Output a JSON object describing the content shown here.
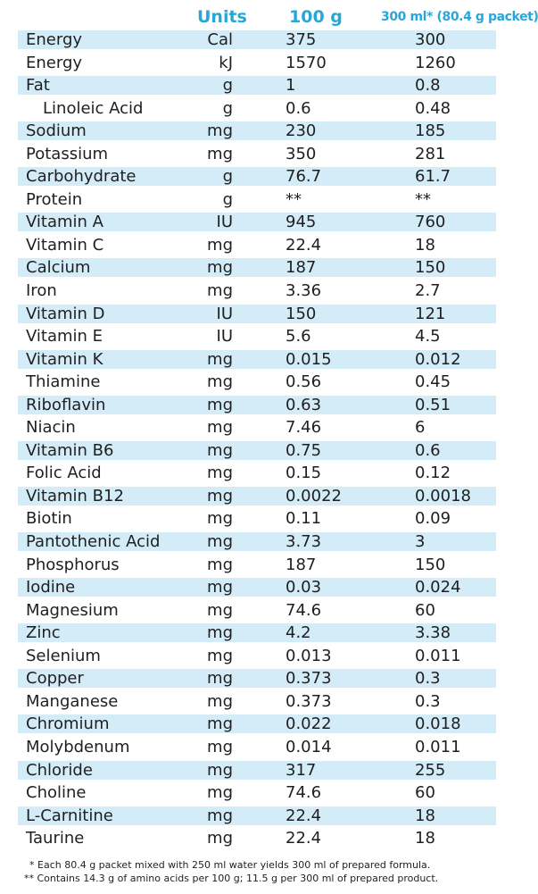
{
  "header": {
    "units": "Units",
    "per_100g": "100 g",
    "per_300ml": "300 ml* (80.4 g packet)"
  },
  "rows": [
    {
      "name": "Energy",
      "unit": "Cal",
      "v100": "375",
      "v300": "300",
      "shaded": true
    },
    {
      "name": "Energy",
      "unit": "kJ",
      "v100": "1570",
      "v300": "1260",
      "shaded": false
    },
    {
      "name": "Fat",
      "unit": "g",
      "v100": "1",
      "v300": "0.8",
      "shaded": true
    },
    {
      "name": "Linoleic Acid",
      "unit": "g",
      "v100": "0.6",
      "v300": "0.48",
      "shaded": false,
      "indent": true
    },
    {
      "name": "Sodium",
      "unit": "mg",
      "v100": "230",
      "v300": "185",
      "shaded": true
    },
    {
      "name": "Potassium",
      "unit": "mg",
      "v100": "350",
      "v300": "281",
      "shaded": false
    },
    {
      "name": "Carbohydrate",
      "unit": "g",
      "v100": "76.7",
      "v300": "61.7",
      "shaded": true
    },
    {
      "name": "Protein",
      "unit": "g",
      "v100": "**",
      "v300": "**",
      "shaded": false
    },
    {
      "name": "Vitamin A",
      "unit": "IU",
      "v100": "945",
      "v300": "760",
      "shaded": true
    },
    {
      "name": "Vitamin C",
      "unit": "mg",
      "v100": "22.4",
      "v300": "18",
      "shaded": false
    },
    {
      "name": "Calcium",
      "unit": "mg",
      "v100": "187",
      "v300": "150",
      "shaded": true
    },
    {
      "name": "Iron",
      "unit": "mg",
      "v100": "3.36",
      "v300": "2.7",
      "shaded": false
    },
    {
      "name": "Vitamin D",
      "unit": "IU",
      "v100": "150",
      "v300": "121",
      "shaded": true
    },
    {
      "name": "Vitamin E",
      "unit": "IU",
      "v100": "5.6",
      "v300": "4.5",
      "shaded": false
    },
    {
      "name": "Vitamin K",
      "unit": "mg",
      "v100": "0.015",
      "v300": "0.012",
      "shaded": true
    },
    {
      "name": "Thiamine",
      "unit": "mg",
      "v100": "0.56",
      "v300": "0.45",
      "shaded": false
    },
    {
      "name": "Riboflavin",
      "unit": "mg",
      "v100": "0.63",
      "v300": "0.51",
      "shaded": true
    },
    {
      "name": "Niacin",
      "unit": "mg",
      "v100": "7.46",
      "v300": "6",
      "shaded": false
    },
    {
      "name": "Vitamin B6",
      "unit": "mg",
      "v100": "0.75",
      "v300": "0.6",
      "shaded": true
    },
    {
      "name": "Folic Acid",
      "unit": "mg",
      "v100": "0.15",
      "v300": "0.12",
      "shaded": false
    },
    {
      "name": "Vitamin B12",
      "unit": "mg",
      "v100": "0.0022",
      "v300": "0.0018",
      "shaded": true
    },
    {
      "name": "Biotin",
      "unit": "mg",
      "v100": "0.11",
      "v300": "0.09",
      "shaded": false
    },
    {
      "name": "Pantothenic Acid",
      "unit": "mg",
      "v100": "3.73",
      "v300": "3",
      "shaded": true
    },
    {
      "name": "Phosphorus",
      "unit": "mg",
      "v100": "187",
      "v300": "150",
      "shaded": false
    },
    {
      "name": "Iodine",
      "unit": "mg",
      "v100": "0.03",
      "v300": "0.024",
      "shaded": true
    },
    {
      "name": "Magnesium",
      "unit": "mg",
      "v100": "74.6",
      "v300": "60",
      "shaded": false
    },
    {
      "name": "Zinc",
      "unit": "mg",
      "v100": "4.2",
      "v300": "3.38",
      "shaded": true
    },
    {
      "name": "Selenium",
      "unit": "mg",
      "v100": "0.013",
      "v300": "0.011",
      "shaded": false
    },
    {
      "name": "Copper",
      "unit": "mg",
      "v100": "0.373",
      "v300": "0.3",
      "shaded": true
    },
    {
      "name": "Manganese",
      "unit": "mg",
      "v100": "0.373",
      "v300": "0.3",
      "shaded": false
    },
    {
      "name": "Chromium",
      "unit": "mg",
      "v100": "0.022",
      "v300": "0.018",
      "shaded": true
    },
    {
      "name": "Molybdenum",
      "unit": "mg",
      "v100": "0.014",
      "v300": "0.011",
      "shaded": false
    },
    {
      "name": "Chloride",
      "unit": "mg",
      "v100": "317",
      "v300": "255",
      "shaded": true
    },
    {
      "name": "Choline",
      "unit": "mg",
      "v100": "74.6",
      "v300": "60",
      "shaded": false
    },
    {
      "name": "L-Carnitine",
      "unit": "mg",
      "v100": "22.4",
      "v300": "18",
      "shaded": true
    },
    {
      "name": "Taurine",
      "unit": "mg",
      "v100": "22.4",
      "v300": "18",
      "shaded": false
    }
  ],
  "footnotes": {
    "note1": "* Each 80.4 g packet mixed with 250 ml water yields 300 ml of prepared formula.",
    "note2": "** Contains 14.3 g of amino acids per 100 g; 11.5 g per 300 ml of prepared product."
  },
  "colors": {
    "header_accent": "#29a6d8",
    "row_shade": "#d3ecf8"
  }
}
